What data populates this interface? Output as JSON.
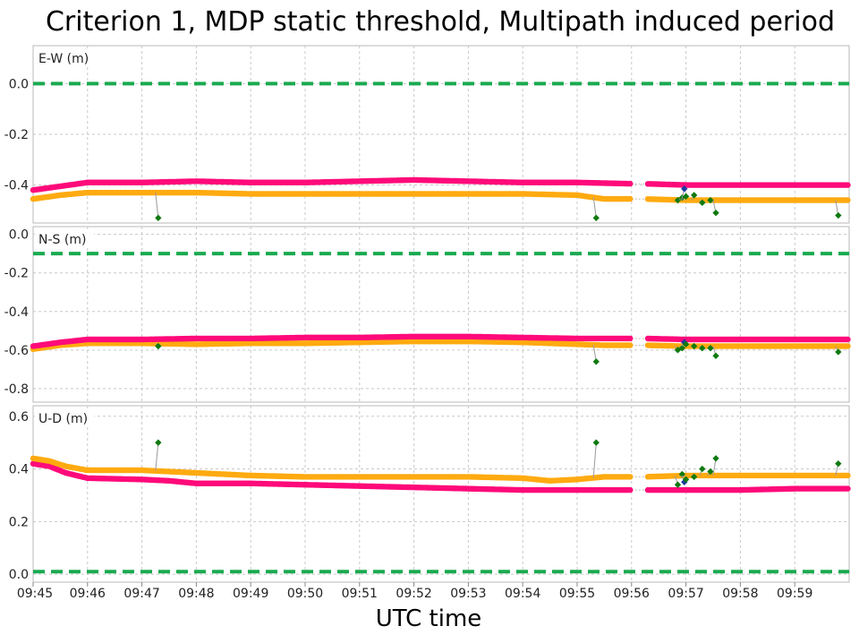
{
  "chart_data": {
    "type": "scatter",
    "title": "Criterion 1, MDP static threshold, Multipath induced period",
    "xlabel": "UTC time",
    "x_ticks": [
      "09:45",
      "09:46",
      "09:47",
      "09:48",
      "09:49",
      "09:50",
      "09:51",
      "09:52",
      "09:53",
      "09:54",
      "09:55",
      "09:56",
      "09:57",
      "09:58",
      "09:59"
    ],
    "x_range_minutes": [
      0,
      15
    ],
    "grid": true,
    "colors": {
      "magenta": "#ff0a7a",
      "orange": "#ffaa10",
      "green_marker": "#0f7a10",
      "blue_marker": "#1a3aa0",
      "threshold": "#1aaa50"
    },
    "panels": [
      {
        "label": "E-W (m)",
        "ylim": [
          -0.55,
          0.15
        ],
        "yticks": [
          0.0,
          -0.2,
          -0.4
        ],
        "ytick_labels": [
          "0.0",
          "-0.2",
          "-0.4"
        ],
        "threshold": 0.0,
        "series": [
          {
            "color": "magenta",
            "points": [
              [
                0,
                -0.42
              ],
              [
                0.5,
                -0.405
              ],
              [
                1,
                -0.39
              ],
              [
                2,
                -0.39
              ],
              [
                3,
                -0.385
              ],
              [
                4,
                -0.39
              ],
              [
                5,
                -0.39
              ],
              [
                6,
                -0.385
              ],
              [
                7,
                -0.38
              ],
              [
                8,
                -0.385
              ],
              [
                9,
                -0.39
              ],
              [
                10,
                -0.39
              ],
              [
                11,
                -0.395
              ],
              [
                11.15,
                -0.395
              ],
              [
                11.25,
                -0.395
              ],
              [
                12,
                -0.4
              ],
              [
                13,
                -0.4
              ],
              [
                14,
                -0.4
              ],
              [
                15,
                -0.4
              ]
            ]
          },
          {
            "color": "orange",
            "points": [
              [
                0,
                -0.455
              ],
              [
                0.5,
                -0.44
              ],
              [
                1,
                -0.43
              ],
              [
                2,
                -0.43
              ],
              [
                3,
                -0.43
              ],
              [
                4,
                -0.435
              ],
              [
                5,
                -0.435
              ],
              [
                6,
                -0.435
              ],
              [
                7,
                -0.435
              ],
              [
                8,
                -0.435
              ],
              [
                9,
                -0.435
              ],
              [
                10,
                -0.44
              ],
              [
                10.5,
                -0.455
              ],
              [
                11,
                -0.455
              ],
              [
                11.15,
                -0.455
              ],
              [
                11.25,
                -0.455
              ],
              [
                12,
                -0.46
              ],
              [
                13,
                -0.46
              ],
              [
                14,
                -0.46
              ],
              [
                15,
                -0.46
              ]
            ]
          }
        ],
        "markers": [
          {
            "x": 2.3,
            "y": -0.53,
            "color": "green_marker"
          },
          {
            "x": 10.35,
            "y": -0.53,
            "color": "green_marker"
          },
          {
            "x": 11.85,
            "y": -0.46,
            "color": "green_marker"
          },
          {
            "x": 11.93,
            "y": -0.45,
            "color": "green_marker"
          },
          {
            "x": 11.97,
            "y": -0.415,
            "color": "blue_marker"
          },
          {
            "x": 12.0,
            "y": -0.445,
            "color": "green_marker"
          },
          {
            "x": 12.15,
            "y": -0.44,
            "color": "green_marker"
          },
          {
            "x": 12.3,
            "y": -0.47,
            "color": "green_marker"
          },
          {
            "x": 12.45,
            "y": -0.46,
            "color": "green_marker"
          },
          {
            "x": 12.55,
            "y": -0.51,
            "color": "green_marker"
          },
          {
            "x": 14.8,
            "y": -0.52,
            "color": "green_marker"
          }
        ]
      },
      {
        "label": "N-S (m)",
        "ylim": [
          -0.87,
          0.04
        ],
        "yticks": [
          0.0,
          -0.2,
          -0.4,
          -0.6,
          -0.8
        ],
        "ytick_labels": [
          "0.0",
          "-0.2",
          "-0.4",
          "-0.6",
          "-0.8"
        ],
        "threshold": -0.1,
        "series": [
          {
            "color": "magenta",
            "points": [
              [
                0,
                -0.58
              ],
              [
                0.5,
                -0.56
              ],
              [
                1,
                -0.545
              ],
              [
                2,
                -0.545
              ],
              [
                3,
                -0.54
              ],
              [
                4,
                -0.54
              ],
              [
                5,
                -0.535
              ],
              [
                6,
                -0.535
              ],
              [
                7,
                -0.53
              ],
              [
                8,
                -0.53
              ],
              [
                9,
                -0.535
              ],
              [
                10,
                -0.54
              ],
              [
                11,
                -0.54
              ],
              [
                11.25,
                -0.54
              ],
              [
                12,
                -0.545
              ],
              [
                13,
                -0.545
              ],
              [
                14,
                -0.545
              ],
              [
                15,
                -0.545
              ]
            ]
          },
          {
            "color": "orange",
            "points": [
              [
                0,
                -0.595
              ],
              [
                0.5,
                -0.575
              ],
              [
                1,
                -0.565
              ],
              [
                2,
                -0.565
              ],
              [
                3,
                -0.57
              ],
              [
                4,
                -0.565
              ],
              [
                5,
                -0.565
              ],
              [
                6,
                -0.56
              ],
              [
                7,
                -0.555
              ],
              [
                8,
                -0.555
              ],
              [
                9,
                -0.56
              ],
              [
                10,
                -0.57
              ],
              [
                10.5,
                -0.575
              ],
              [
                11,
                -0.575
              ],
              [
                11.25,
                -0.575
              ],
              [
                12,
                -0.58
              ],
              [
                13,
                -0.58
              ],
              [
                14,
                -0.58
              ],
              [
                15,
                -0.58
              ]
            ]
          }
        ],
        "markers": [
          {
            "x": 2.3,
            "y": -0.58,
            "color": "green_marker"
          },
          {
            "x": 10.35,
            "y": -0.66,
            "color": "green_marker"
          },
          {
            "x": 11.85,
            "y": -0.6,
            "color": "green_marker"
          },
          {
            "x": 11.93,
            "y": -0.59,
            "color": "green_marker"
          },
          {
            "x": 11.97,
            "y": -0.56,
            "color": "blue_marker"
          },
          {
            "x": 12.0,
            "y": -0.57,
            "color": "green_marker"
          },
          {
            "x": 12.15,
            "y": -0.58,
            "color": "green_marker"
          },
          {
            "x": 12.3,
            "y": -0.59,
            "color": "green_marker"
          },
          {
            "x": 12.45,
            "y": -0.59,
            "color": "green_marker"
          },
          {
            "x": 12.55,
            "y": -0.63,
            "color": "green_marker"
          },
          {
            "x": 14.8,
            "y": -0.61,
            "color": "green_marker"
          }
        ]
      },
      {
        "label": "U-D (m)",
        "ylim": [
          -0.03,
          0.64
        ],
        "yticks": [
          0.6,
          0.4,
          0.2,
          0.0
        ],
        "ytick_labels": [
          "0.6",
          "0.4",
          "0.2",
          "0.0"
        ],
        "threshold": 0.01,
        "series": [
          {
            "color": "magenta",
            "points": [
              [
                0,
                0.42
              ],
              [
                0.3,
                0.41
              ],
              [
                0.6,
                0.385
              ],
              [
                1,
                0.365
              ],
              [
                2,
                0.36
              ],
              [
                2.5,
                0.355
              ],
              [
                3,
                0.345
              ],
              [
                4,
                0.345
              ],
              [
                5,
                0.34
              ],
              [
                6,
                0.335
              ],
              [
                7,
                0.33
              ],
              [
                8,
                0.325
              ],
              [
                9,
                0.32
              ],
              [
                10,
                0.32
              ],
              [
                11,
                0.32
              ],
              [
                11.25,
                0.32
              ],
              [
                12,
                0.32
              ],
              [
                13,
                0.32
              ],
              [
                14,
                0.325
              ],
              [
                15,
                0.325
              ]
            ]
          },
          {
            "color": "orange",
            "points": [
              [
                0,
                0.44
              ],
              [
                0.3,
                0.43
              ],
              [
                0.6,
                0.41
              ],
              [
                1,
                0.395
              ],
              [
                2,
                0.395
              ],
              [
                2.5,
                0.39
              ],
              [
                3,
                0.385
              ],
              [
                4,
                0.375
              ],
              [
                5,
                0.37
              ],
              [
                6,
                0.37
              ],
              [
                7,
                0.37
              ],
              [
                8,
                0.37
              ],
              [
                9,
                0.365
              ],
              [
                9.5,
                0.355
              ],
              [
                10,
                0.36
              ],
              [
                10.5,
                0.37
              ],
              [
                11,
                0.37
              ],
              [
                11.25,
                0.37
              ],
              [
                12,
                0.375
              ],
              [
                13,
                0.375
              ],
              [
                14,
                0.375
              ],
              [
                15,
                0.375
              ]
            ]
          }
        ],
        "markers": [
          {
            "x": 2.3,
            "y": 0.5,
            "color": "green_marker"
          },
          {
            "x": 10.35,
            "y": 0.5,
            "color": "green_marker"
          },
          {
            "x": 11.85,
            "y": 0.34,
            "color": "green_marker"
          },
          {
            "x": 11.93,
            "y": 0.38,
            "color": "green_marker"
          },
          {
            "x": 11.97,
            "y": 0.35,
            "color": "blue_marker"
          },
          {
            "x": 12.0,
            "y": 0.36,
            "color": "green_marker"
          },
          {
            "x": 12.15,
            "y": 0.37,
            "color": "green_marker"
          },
          {
            "x": 12.3,
            "y": 0.4,
            "color": "green_marker"
          },
          {
            "x": 12.45,
            "y": 0.39,
            "color": "green_marker"
          },
          {
            "x": 12.55,
            "y": 0.44,
            "color": "green_marker"
          },
          {
            "x": 14.8,
            "y": 0.42,
            "color": "green_marker"
          }
        ]
      }
    ]
  }
}
